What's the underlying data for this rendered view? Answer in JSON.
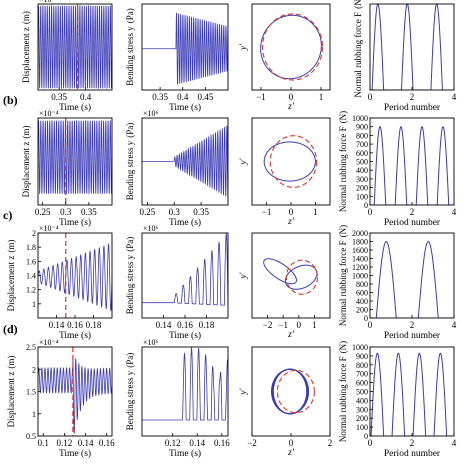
{
  "figure": {
    "row_labels": [
      "(b)",
      "c)",
      "(d)"
    ],
    "colors": {
      "signal": "#3b3bb8",
      "marker": "#e8302a",
      "axes": "#000000"
    }
  },
  "chart_data": [
    {
      "row": 0,
      "col": 0,
      "type": "line",
      "xlabel": "Time (s)",
      "ylabel": "Displacement z",
      "ylabel_unit": "(m)",
      "xlim": [
        0.31,
        0.45
      ],
      "xticks": [
        0.35,
        0.4
      ],
      "xtick_labels": [
        "0.35",
        "0.4"
      ],
      "yticks": [],
      "ytick_labels": [],
      "exponent": "×10⁻⁴",
      "signal": {
        "kind": "steady",
        "t0": 0.31,
        "t1": 0.45,
        "center": 0.5,
        "amp": 0.48,
        "cycles": 34
      },
      "marker_x": 0.385
    },
    {
      "row": 0,
      "col": 1,
      "type": "line",
      "xlabel": "Time (s)",
      "ylabel": "Bending stress y",
      "ylabel_unit": "(Pa)",
      "xlim": [
        0.31,
        0.5
      ],
      "xticks": [
        0.35,
        0.4,
        0.45
      ],
      "xtick_labels": [
        "0.35",
        "0.4",
        "0.45"
      ],
      "yticks": [],
      "ytick_labels": [],
      "signal": {
        "kind": "onset_decay",
        "onset": 0.385,
        "t1": 0.5,
        "center": 0.48,
        "amp_start": 0.42,
        "amp_end": 0.26,
        "cycles": 40
      }
    },
    {
      "row": 0,
      "col": 2,
      "type": "orbit",
      "xlabel": "z'",
      "ylabel": "y'",
      "xlim": [
        -1.3,
        1.3
      ],
      "ylim": [
        -1.3,
        1.3
      ],
      "xticks": [
        -1,
        0,
        1
      ],
      "xtick_labels": [
        "−1",
        "0",
        "1"
      ],
      "orbit": {
        "kind": "ellipse",
        "rx": 1.02,
        "ry": 0.95,
        "cx": 0.0,
        "cy": 0.0,
        "tilt": 0.35
      },
      "reference_circle": {
        "cx": 0.05,
        "cy": 0.0,
        "r": 1.0
      }
    },
    {
      "row": 0,
      "col": 3,
      "type": "line",
      "xlabel": "Period number",
      "ylabel": "Normal rubbing force F",
      "ylabel_unit": "(N)",
      "xlim": [
        0,
        4
      ],
      "ylim": [
        0,
        1000
      ],
      "xticks": [
        0,
        2,
        4
      ],
      "xtick_labels": [
        "0",
        "2",
        "4"
      ],
      "yticks": [],
      "ytick_labels": [],
      "pulses": {
        "peak": 1000,
        "starts": [
          0.1,
          1.5,
          2.9
        ],
        "width": 0.55
      }
    },
    {
      "row": 1,
      "col": 0,
      "type": "line",
      "xlabel": "Time (s)",
      "ylabel": "Displacement z",
      "ylabel_unit": "(m)",
      "xlim": [
        0.24,
        0.4
      ],
      "xticks": [
        0.25,
        0.3,
        0.35
      ],
      "xtick_labels": [
        "0.25",
        "0.3",
        "0.35"
      ],
      "yticks": [],
      "ytick_labels": [],
      "exponent": "×10⁻⁴",
      "signal": {
        "kind": "steady",
        "t0": 0.24,
        "t1": 0.4,
        "center": 0.55,
        "amp": 0.42,
        "cycles": 33
      },
      "marker_x": 0.3
    },
    {
      "row": 1,
      "col": 1,
      "type": "line",
      "xlabel": "Time (s)",
      "ylabel": "Bending stress y",
      "ylabel_unit": "(Pa)",
      "xlim": [
        0.24,
        0.4
      ],
      "xticks": [
        0.25,
        0.3,
        0.35
      ],
      "xtick_labels": [
        "0.25",
        "0.3",
        "0.35"
      ],
      "yticks": [],
      "ytick_labels": [],
      "exponent": "×10⁶",
      "signal": {
        "kind": "onset_grow",
        "onset": 0.3,
        "t1": 0.4,
        "center": 0.5,
        "amp_start": 0.05,
        "amp_end": 0.42,
        "cycles": 38
      }
    },
    {
      "row": 1,
      "col": 2,
      "type": "orbit",
      "xlabel": "z'",
      "ylabel": "y'",
      "xlim": [
        -1.6,
        1.6
      ],
      "ylim": [
        -1.6,
        1.6
      ],
      "xticks": [
        -1,
        0,
        1
      ],
      "xtick_labels": [
        "−1",
        "0",
        "1"
      ],
      "orbit": {
        "kind": "ellipse",
        "rx": 1.05,
        "ry": 0.72,
        "cx": -0.05,
        "cy": 0.0,
        "tilt": 0.0
      },
      "reference_circle": {
        "cx": 0.1,
        "cy": 0.0,
        "r": 0.95
      }
    },
    {
      "row": 1,
      "col": 3,
      "type": "line",
      "xlabel": "Period number",
      "ylabel": "Normal rubbing force F",
      "ylabel_unit": "(N)",
      "xlim": [
        0,
        4
      ],
      "ylim": [
        0,
        1000
      ],
      "xticks": [
        0,
        2,
        4
      ],
      "xtick_labels": [
        "0",
        "2",
        "4"
      ],
      "yticks": [
        0,
        100,
        200,
        300,
        400,
        500,
        600,
        700,
        800,
        900,
        1000
      ],
      "ytick_labels": [
        "0",
        "100",
        "200",
        "300",
        "400",
        "500",
        "600",
        "700",
        "800",
        "900",
        "1000"
      ],
      "pulses": {
        "peak": 900,
        "starts": [
          0.2,
          1.2,
          2.2,
          3.2
        ],
        "width": 0.55
      }
    },
    {
      "row": 2,
      "col": 0,
      "type": "line",
      "xlabel": "Time (s)",
      "ylabel": "Displacement z",
      "ylabel_unit": "(m)",
      "xlim": [
        0.12,
        0.2
      ],
      "ylim": [
        0.8,
        2.0
      ],
      "xticks": [
        0.14,
        0.16,
        0.18
      ],
      "xtick_labels": [
        "0.14",
        "0.16",
        "0.18"
      ],
      "yticks": [
        1,
        1.2,
        1.4,
        1.6,
        1.8,
        2
      ],
      "ytick_labels": [
        "1",
        "1.2",
        "1.4",
        "1.6",
        "1.8",
        "2"
      ],
      "exponent": "×10⁻⁴",
      "signal": {
        "kind": "grow",
        "t0": 0.12,
        "t1": 0.2,
        "center": 1.38,
        "amp_start": 0.08,
        "amp_end": 0.48,
        "cycles": 16
      },
      "marker_x": 0.15
    },
    {
      "row": 2,
      "col": 1,
      "type": "line",
      "xlabel": "Time (s)",
      "ylabel": "Bending stress y",
      "ylabel_unit": "(Pa)",
      "xlim": [
        0.12,
        0.2
      ],
      "xticks": [
        0.14,
        0.16,
        0.18
      ],
      "xtick_labels": [
        "0.14",
        "0.16",
        "0.18"
      ],
      "yticks": [],
      "ytick_labels": [],
      "exponent": "×10⁶",
      "signal": {
        "kind": "onset_grow_one",
        "onset": 0.15,
        "t1": 0.2,
        "center": 0.18,
        "amp_start": 0.06,
        "amp_end": 0.62,
        "cycles": 12
      }
    },
    {
      "row": 2,
      "col": 2,
      "type": "orbit",
      "xlabel": "z'",
      "ylabel": "y'",
      "xlim": [
        -3,
        2
      ],
      "ylim": [
        -2.5,
        2.5
      ],
      "xticks": [
        -2,
        -1,
        0,
        1
      ],
      "xtick_labels": [
        "−2",
        "−1",
        "0",
        "1"
      ],
      "orbit": {
        "kind": "two_loop"
      },
      "reference_circle": {
        "cx": 0.2,
        "cy": -0.1,
        "r": 1.0
      }
    },
    {
      "row": 2,
      "col": 3,
      "type": "line",
      "xlabel": "Period number",
      "ylabel": "Normal rubbing force F",
      "ylabel_unit": "(N)",
      "xlim": [
        0,
        4
      ],
      "ylim": [
        0,
        2000
      ],
      "xticks": [
        0,
        2,
        4
      ],
      "xtick_labels": [
        "0",
        "2",
        "4"
      ],
      "yticks": [
        0,
        200,
        400,
        600,
        800,
        1000,
        1200,
        1400,
        1600,
        1800,
        2000
      ],
      "ytick_labels": [
        "0",
        "200",
        "400",
        "600",
        "800",
        "1000",
        "1200",
        "1400",
        "1600",
        "1800",
        "2000"
      ],
      "pulses": {
        "peak": 1800,
        "starts": [
          0.3,
          2.3
        ],
        "width": 0.95
      }
    },
    {
      "row": 3,
      "col": 0,
      "type": "line",
      "xlabel": "Time (s)",
      "ylabel": "Displacement z",
      "ylabel_unit": "(m)",
      "xlim": [
        0.095,
        0.165
      ],
      "ylim": [
        0.5,
        2.5
      ],
      "xticks": [
        0.1,
        0.12,
        0.14,
        0.16
      ],
      "xtick_labels": [
        "0.1",
        "0.12",
        "0.14",
        "0.16"
      ],
      "yticks": [
        0.5,
        1,
        1.5,
        2,
        2.5
      ],
      "ytick_labels": [
        "0.5",
        "1",
        "1.5",
        "2",
        "2.5"
      ],
      "exponent": "×10⁻⁴",
      "signal": {
        "kind": "disturb",
        "t0": 0.095,
        "t1": 0.165,
        "center": 1.75,
        "amp": 0.28,
        "cycles": 24,
        "burst_at": 0.128,
        "burst_amp": 0.75
      },
      "marker_x": 0.128
    },
    {
      "row": 3,
      "col": 1,
      "type": "line",
      "xlabel": "Time (s)",
      "ylabel": "Bending stress y",
      "ylabel_unit": "(Pa)",
      "xlim": [
        0.095,
        0.165
      ],
      "xticks": [
        0.12,
        0.14,
        0.16
      ],
      "xtick_labels": [
        "0.12",
        "0.14",
        "0.16"
      ],
      "yticks": [],
      "ytick_labels": [],
      "exponent": "×10⁶",
      "signal": {
        "kind": "onset_irregular",
        "onset": 0.128,
        "t1": 0.165,
        "center": 0.18,
        "amp": 0.68,
        "cycles": 12
      }
    },
    {
      "row": 3,
      "col": 2,
      "type": "orbit",
      "xlabel": "z'",
      "ylabel": "y'",
      "xlim": [
        -2,
        2
      ],
      "ylim": [
        -2,
        2
      ],
      "xticks": [
        -2,
        0,
        2
      ],
      "xtick_labels": [
        "−2",
        "0",
        "2"
      ],
      "orbit": {
        "kind": "band",
        "rx": 0.95,
        "ry": 1.0,
        "cx": -0.05,
        "cy": 0.0,
        "spread": 0.12
      },
      "reference_circle": {
        "cx": 0.25,
        "cy": 0.0,
        "r": 0.95
      }
    },
    {
      "row": 3,
      "col": 3,
      "type": "line",
      "xlabel": "Period number",
      "ylabel": "Normal rubbing force F",
      "ylabel_unit": "(N)",
      "xlim": [
        0,
        4
      ],
      "ylim": [
        0,
        1000
      ],
      "xticks": [
        0,
        2,
        4
      ],
      "xtick_labels": [
        "0",
        "2",
        "4"
      ],
      "yticks": [
        0,
        100,
        200,
        300,
        400,
        500,
        600,
        700,
        800,
        900,
        1000
      ],
      "ytick_labels": [
        "0",
        "100",
        "200",
        "300",
        "400",
        "500",
        "600",
        "700",
        "800",
        "900",
        "1000"
      ],
      "pulses": {
        "peak": 930,
        "starts": [
          0.05,
          1.05,
          2.05,
          3.05
        ],
        "width": 0.6
      }
    }
  ]
}
